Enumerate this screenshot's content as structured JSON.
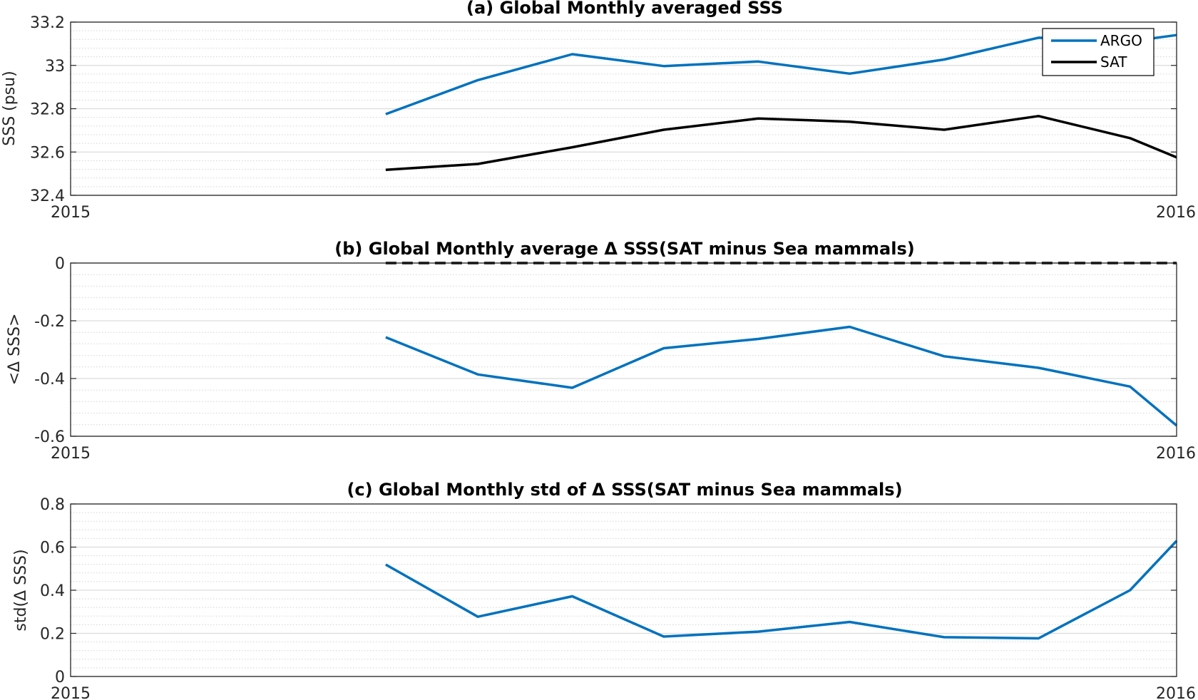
{
  "chart_data": [
    {
      "type": "line",
      "title": "(a) Global Monthly averaged SSS",
      "xlabel": "",
      "ylabel": "SSS (psu)",
      "xlim": [
        2015,
        2016
      ],
      "xticks": [
        "2015",
        "2016"
      ],
      "ylim": [
        32.4,
        33.2
      ],
      "yticks": [
        "32.4",
        "32.6",
        "32.8",
        "33",
        "33.2"
      ],
      "grid": true,
      "minor_grid": true,
      "legend_position": "top-right",
      "x": [
        2015.2849,
        2015.3682,
        2015.4536,
        2015.5363,
        2015.6217,
        2015.7044,
        2015.7898,
        2015.8752,
        2015.9579,
        2016.0
      ],
      "series": [
        {
          "name": "ARGO",
          "color": "#0072BD",
          "values": [
            32.775,
            32.932,
            33.052,
            32.997,
            33.018,
            32.962,
            33.027,
            33.128,
            33.111,
            33.14
          ]
        },
        {
          "name": "SAT",
          "color": "#000000",
          "values": [
            32.518,
            32.545,
            32.622,
            32.703,
            32.755,
            32.74,
            32.703,
            32.766,
            32.664,
            32.575
          ]
        }
      ]
    },
    {
      "type": "line",
      "title": "(b) Global Monthly average Δ SSS(SAT minus Sea mammals)",
      "xlabel": "",
      "ylabel": "<Δ SSS>",
      "xlim": [
        2015,
        2016
      ],
      "xticks": [
        "2015",
        "2016"
      ],
      "ylim": [
        -0.6,
        0
      ],
      "yticks": [
        "-0.6",
        "-0.4",
        "-0.2",
        "0"
      ],
      "grid": true,
      "minor_grid": true,
      "reference_line": {
        "y": 0,
        "style": "dashed",
        "color": "#000000",
        "x_from": 2015.2849
      },
      "x": [
        2015.2849,
        2015.3682,
        2015.4536,
        2015.5363,
        2015.6217,
        2015.7044,
        2015.7898,
        2015.8752,
        2015.9579,
        2016.0
      ],
      "series": [
        {
          "color": "#0072BD",
          "values": [
            -0.257,
            -0.386,
            -0.432,
            -0.295,
            -0.263,
            -0.221,
            -0.323,
            -0.363,
            -0.428,
            -0.563
          ]
        }
      ]
    },
    {
      "type": "line",
      "title": "(c) Global Monthly std of Δ SSS(SAT minus Sea mammals)",
      "xlabel": "",
      "ylabel": "std(Δ SSS)",
      "xlim": [
        2015,
        2016
      ],
      "xticks": [
        "2015",
        "2016"
      ],
      "ylim": [
        0,
        0.8
      ],
      "yticks": [
        "0",
        "0.2",
        "0.4",
        "0.6",
        "0.8"
      ],
      "grid": true,
      "minor_grid": true,
      "x": [
        2015.2849,
        2015.3682,
        2015.4536,
        2015.5363,
        2015.6217,
        2015.7044,
        2015.7898,
        2015.8752,
        2015.9579,
        2016.0
      ],
      "series": [
        {
          "color": "#0072BD",
          "values": [
            0.519,
            0.277,
            0.372,
            0.185,
            0.208,
            0.253,
            0.182,
            0.177,
            0.4,
            0.629
          ]
        }
      ]
    }
  ]
}
